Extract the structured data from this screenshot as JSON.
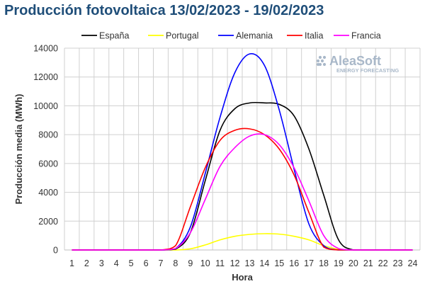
{
  "chart_data": {
    "type": "line",
    "title": "Producción fotovoltaica 13/02/2023 - 19/02/2023",
    "xlabel": "Hora",
    "ylabel": "Producción media (MWh)",
    "ylim": [
      0,
      14000
    ],
    "yticks": [
      0,
      2000,
      4000,
      6000,
      8000,
      10000,
      12000,
      14000
    ],
    "x": [
      1,
      2,
      3,
      4,
      5,
      6,
      7,
      8,
      9,
      10,
      11,
      12,
      13,
      14,
      15,
      16,
      17,
      18,
      19,
      20,
      21,
      22,
      23,
      24
    ],
    "grid": true,
    "legend_position": "top",
    "logo": {
      "main": "AleaSoft",
      "sub": "ENERGY FORECASTING"
    },
    "series": [
      {
        "name": "España",
        "color": "#000000",
        "values": [
          0,
          0,
          0,
          0,
          0,
          0,
          0,
          60,
          1200,
          4800,
          8300,
          9800,
          10200,
          10200,
          10100,
          9300,
          7000,
          3800,
          700,
          0,
          0,
          0,
          0,
          0
        ]
      },
      {
        "name": "Portugal",
        "color": "#ffff00",
        "values": [
          0,
          0,
          0,
          0,
          0,
          0,
          0,
          0,
          80,
          350,
          700,
          950,
          1080,
          1130,
          1100,
          950,
          700,
          300,
          50,
          0,
          0,
          0,
          0,
          0
        ]
      },
      {
        "name": "Alemania",
        "color": "#0000ff",
        "values": [
          0,
          0,
          0,
          0,
          0,
          0,
          0,
          100,
          1600,
          5300,
          9200,
          12300,
          13600,
          12800,
          9700,
          5600,
          1800,
          300,
          0,
          0,
          0,
          0,
          0,
          0
        ]
      },
      {
        "name": "Italia",
        "color": "#ff0000",
        "values": [
          0,
          0,
          0,
          0,
          0,
          0,
          0,
          300,
          3000,
          5700,
          7600,
          8300,
          8400,
          8000,
          7000,
          5200,
          2600,
          200,
          0,
          0,
          0,
          0,
          0,
          0
        ]
      },
      {
        "name": "Francia",
        "color": "#ff00ff",
        "values": [
          0,
          0,
          0,
          0,
          0,
          0,
          0,
          100,
          1200,
          3500,
          5800,
          7100,
          7900,
          8000,
          7300,
          5700,
          3400,
          1000,
          100,
          0,
          0,
          0,
          0,
          0
        ]
      }
    ]
  }
}
